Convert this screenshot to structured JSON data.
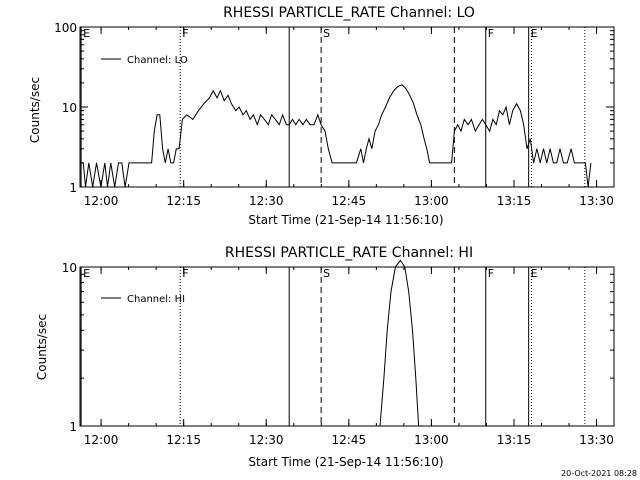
{
  "footer": {
    "timestamp": "20-Oct-2021 08:28"
  },
  "chart_data": [
    {
      "type": "line",
      "title": "RHESSI PARTICLE_RATE Channel: LO",
      "xlabel": "Start Time (21-Sep-14 11:56:10)",
      "ylabel": "Counts/sec",
      "y_scale": "log",
      "ylim": [
        1,
        100
      ],
      "yticks": [
        "1",
        "10",
        "100"
      ],
      "xticks": [
        "12:00",
        "12:15",
        "12:30",
        "12:45",
        "13:00",
        "13:15",
        "13:30"
      ],
      "xlim_min_from_start": [
        0,
        97
      ],
      "legend": {
        "label": "Channel: LO",
        "position": "top-left"
      },
      "markers": [
        {
          "label": "E",
          "t": 0.2,
          "style": "solid"
        },
        {
          "label": "F",
          "t": 18.2,
          "style": "dotted"
        },
        {
          "label": "",
          "t": 38.0,
          "style": "solid"
        },
        {
          "label": "S",
          "t": 43.8,
          "style": "dashed"
        },
        {
          "label": "",
          "t": 68.0,
          "style": "dashed"
        },
        {
          "label": "F",
          "t": 73.7,
          "style": "solid"
        },
        {
          "label": "E",
          "t": 81.5,
          "style": "solid"
        },
        {
          "label": "",
          "t": 82.0,
          "style": "dotted"
        },
        {
          "label": "",
          "t": 91.7,
          "style": "dotted"
        }
      ],
      "series": [
        {
          "name": "Channel: LO",
          "points": [
            [
              0,
              2
            ],
            [
              0.6,
              2
            ],
            [
              1,
              1
            ],
            [
              1.6,
              2
            ],
            [
              2.3,
              1
            ],
            [
              3,
              2
            ],
            [
              3.8,
              1
            ],
            [
              4.5,
              2
            ],
            [
              5,
              1
            ],
            [
              5.6,
              2
            ],
            [
              6.3,
              1
            ],
            [
              7,
              2
            ],
            [
              7.6,
              2
            ],
            [
              8.2,
              1
            ],
            [
              8.9,
              2
            ],
            [
              12,
              2
            ],
            [
              13,
              2
            ],
            [
              13.5,
              5
            ],
            [
              14,
              8
            ],
            [
              14.5,
              8
            ],
            [
              15,
              3
            ],
            [
              15.5,
              2
            ],
            [
              16,
              3
            ],
            [
              16.5,
              2
            ],
            [
              17,
              2
            ],
            [
              17.5,
              3
            ],
            [
              18,
              3
            ],
            [
              18.6,
              7
            ],
            [
              19.4,
              8
            ],
            [
              20.5,
              7
            ],
            [
              21.5,
              9
            ],
            [
              22.5,
              11
            ],
            [
              23.5,
              13
            ],
            [
              24.2,
              16
            ],
            [
              24.9,
              13
            ],
            [
              25.5,
              16
            ],
            [
              26.2,
              12
            ],
            [
              26.9,
              14
            ],
            [
              27.5,
              11
            ],
            [
              28.3,
              9
            ],
            [
              28.9,
              10
            ],
            [
              29.6,
              8
            ],
            [
              30.2,
              9
            ],
            [
              30.9,
              7
            ],
            [
              31.5,
              8
            ],
            [
              32.2,
              6
            ],
            [
              32.8,
              8
            ],
            [
              33.5,
              7
            ],
            [
              34.2,
              6
            ],
            [
              34.8,
              8
            ],
            [
              35.5,
              7
            ],
            [
              36.2,
              6
            ],
            [
              36.8,
              8
            ],
            [
              37.5,
              6
            ],
            [
              38,
              6
            ],
            [
              38.6,
              7
            ],
            [
              39.2,
              6
            ],
            [
              39.8,
              7
            ],
            [
              40.5,
              6
            ],
            [
              41.1,
              7
            ],
            [
              41.8,
              6
            ],
            [
              42.5,
              6
            ],
            [
              43.2,
              8
            ],
            [
              43.8,
              6
            ],
            [
              44.5,
              5
            ],
            [
              45.1,
              3
            ],
            [
              45.8,
              2
            ],
            [
              46.5,
              2
            ],
            [
              47.2,
              2
            ],
            [
              48.3,
              2
            ],
            [
              49.3,
              2
            ],
            [
              50.2,
              2
            ],
            [
              51,
              3
            ],
            [
              51.5,
              2
            ],
            [
              52,
              3
            ],
            [
              52.5,
              4
            ],
            [
              53,
              3
            ],
            [
              53.6,
              5
            ],
            [
              54.2,
              6
            ],
            [
              54.8,
              8
            ],
            [
              55.5,
              10
            ],
            [
              56.2,
              13
            ],
            [
              57,
              16
            ],
            [
              57.7,
              18
            ],
            [
              58.5,
              19
            ],
            [
              59.2,
              17
            ],
            [
              59.9,
              14
            ],
            [
              60.6,
              11
            ],
            [
              61.2,
              8
            ],
            [
              61.9,
              6
            ],
            [
              62.5,
              4
            ],
            [
              63,
              3
            ],
            [
              63.5,
              2
            ],
            [
              67.5,
              2
            ],
            [
              68,
              5
            ],
            [
              68.6,
              6
            ],
            [
              69.2,
              5
            ],
            [
              69.8,
              7
            ],
            [
              70.5,
              6
            ],
            [
              71.1,
              7
            ],
            [
              71.8,
              5
            ],
            [
              72.5,
              6
            ],
            [
              73.1,
              7
            ],
            [
              73.7,
              6
            ],
            [
              74.4,
              5
            ],
            [
              75,
              7
            ],
            [
              75.6,
              6
            ],
            [
              76.2,
              9
            ],
            [
              76.8,
              8
            ],
            [
              77.4,
              10
            ],
            [
              78,
              6
            ],
            [
              78.6,
              9
            ],
            [
              79.3,
              11
            ],
            [
              80,
              9
            ],
            [
              80.6,
              6
            ],
            [
              81.2,
              3
            ],
            [
              81.8,
              4
            ],
            [
              82.4,
              2
            ],
            [
              83,
              3
            ],
            [
              83.6,
              2
            ],
            [
              84.2,
              3
            ],
            [
              84.8,
              2
            ],
            [
              85.4,
              3
            ],
            [
              86,
              2
            ],
            [
              86.6,
              2
            ],
            [
              87.2,
              3
            ],
            [
              87.8,
              2
            ],
            [
              88.5,
              2
            ],
            [
              89.2,
              3
            ],
            [
              89.8,
              2
            ],
            [
              91,
              2
            ],
            [
              91.8,
              2
            ],
            [
              92.3,
              1
            ],
            [
              92.8,
              2
            ]
          ]
        }
      ]
    },
    {
      "type": "line",
      "title": "RHESSI PARTICLE_RATE Channel: HI",
      "xlabel": "Start Time (21-Sep-14 11:56:10)",
      "ylabel": "Counts/sec",
      "y_scale": "log",
      "ylim": [
        1,
        10
      ],
      "yticks": [
        "1",
        "10"
      ],
      "xticks": [
        "12:00",
        "12:15",
        "12:30",
        "12:45",
        "13:00",
        "13:15",
        "13:30"
      ],
      "xlim_min_from_start": [
        0,
        97
      ],
      "legend": {
        "label": "Channel: HI",
        "position": "top-left"
      },
      "markers": [
        {
          "label": "E",
          "t": 0.2,
          "style": "solid"
        },
        {
          "label": "F",
          "t": 18.2,
          "style": "dotted"
        },
        {
          "label": "",
          "t": 38.0,
          "style": "solid"
        },
        {
          "label": "S",
          "t": 43.8,
          "style": "dashed"
        },
        {
          "label": "",
          "t": 68.0,
          "style": "dashed"
        },
        {
          "label": "F",
          "t": 73.7,
          "style": "solid"
        },
        {
          "label": "E",
          "t": 81.5,
          "style": "solid"
        },
        {
          "label": "",
          "t": 82.0,
          "style": "dotted"
        },
        {
          "label": "",
          "t": 91.7,
          "style": "dotted"
        }
      ],
      "series": [
        {
          "name": "Channel: HI",
          "points": [
            [
              54.5,
              1
            ],
            [
              55.2,
              2
            ],
            [
              55.8,
              4
            ],
            [
              56.5,
              7
            ],
            [
              57.3,
              10
            ],
            [
              58.2,
              11
            ],
            [
              59,
              10
            ],
            [
              59.7,
              7
            ],
            [
              60.4,
              4
            ],
            [
              61,
              2
            ],
            [
              61.5,
              1
            ]
          ]
        }
      ]
    }
  ]
}
